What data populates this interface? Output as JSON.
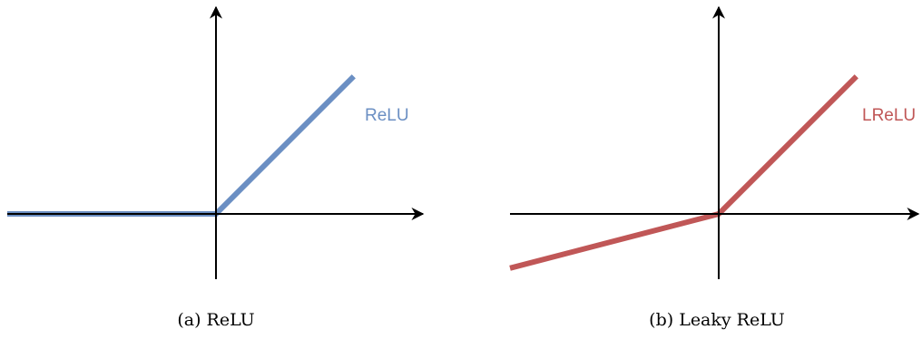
{
  "chart_data": [
    {
      "type": "line",
      "caption": "(a) ReLU",
      "series": [
        {
          "name": "ReLU",
          "x": [
            -1,
            0,
            0.66
          ],
          "y": [
            0,
            0,
            0.66
          ],
          "color": "#6b8fc3"
        }
      ],
      "axes": {
        "arrows": true,
        "ticks": false,
        "grid": false
      }
    },
    {
      "type": "line",
      "caption": "(b) Leaky ReLU",
      "series": [
        {
          "name": "LReLU",
          "x": [
            -1,
            0,
            0.66
          ],
          "y": [
            -0.26,
            0,
            0.66
          ],
          "color": "#c05757"
        }
      ],
      "axes": {
        "arrows": true,
        "ticks": false,
        "grid": false
      }
    }
  ]
}
